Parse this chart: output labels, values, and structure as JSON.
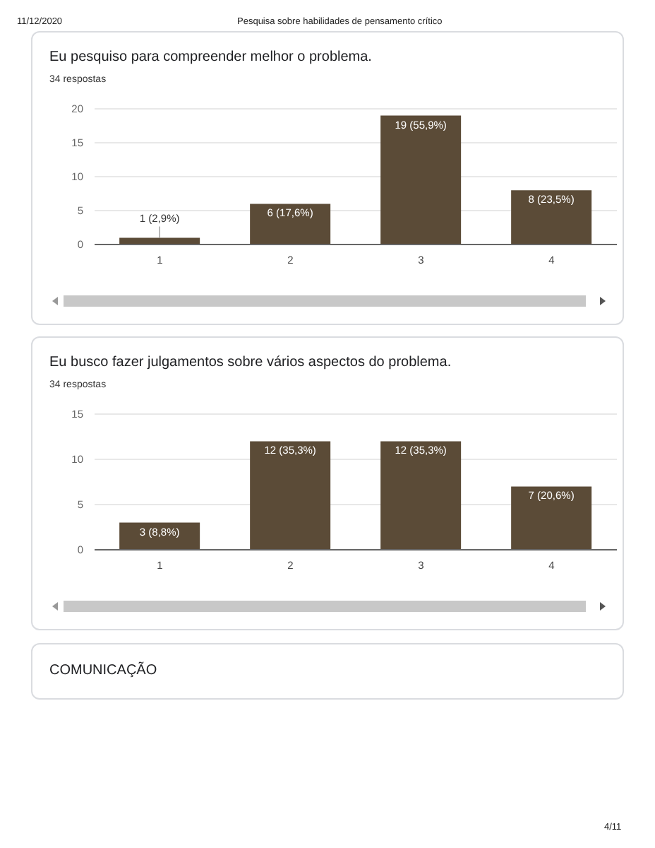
{
  "chart_data": [
    {
      "type": "bar",
      "title": "Eu pesquiso para compreender melhor o problema.",
      "subtitle": "34 respostas",
      "annotations": [
        "11/12/2020",
        "Pesquisa sobre habilidades de pensamento crítico"
      ],
      "categories": [
        "1",
        "2",
        "3",
        "4"
      ],
      "values": [
        1,
        6,
        19,
        8
      ],
      "color": "#5b4b37",
      "value_labels": [
        "1 (2,9%)",
        "6 (17,6%)",
        "19 (55,9%)",
        "8 (23,5%)"
      ],
      "ylim": [
        0,
        20
      ],
      "yticks": [
        0,
        5,
        10,
        15,
        20
      ],
      "grid": "y",
      "legend": false
    },
    {
      "type": "bar",
      "title": "Eu busco fazer julgamentos sobre vários aspectos do problema.",
      "subtitle": "34 respostas",
      "annotations": [
        "COMUNICAÇÃO",
        "4/11"
      ],
      "categories": [
        "1",
        "2",
        "3",
        "4"
      ],
      "values": [
        3,
        12,
        12,
        7
      ],
      "color": "#5b4b37",
      "value_labels": [
        "3 (8,8%)",
        "12 (35,3%)",
        "12 (35,3%)",
        "7 (20,6%)"
      ],
      "ylim": [
        0,
        15
      ],
      "yticks": [
        0,
        5,
        10,
        15
      ],
      "grid": "y",
      "legend": false
    }
  ]
}
